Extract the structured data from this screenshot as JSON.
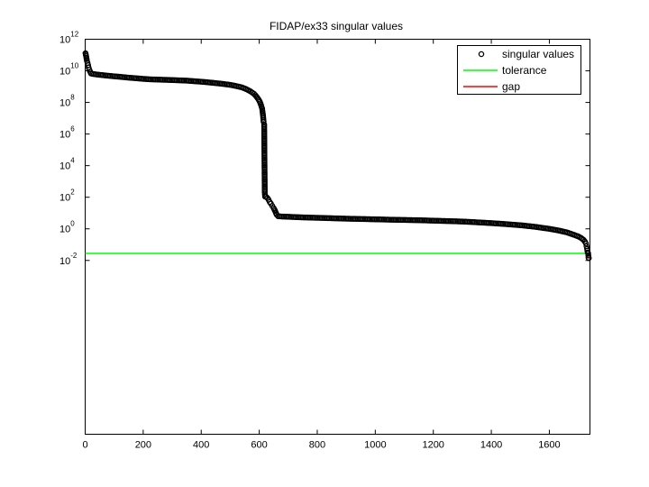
{
  "chart_data": {
    "type": "scatter",
    "title": "FIDAP/ex33 singular values",
    "xlabel": "",
    "ylabel": "",
    "yscale": "log",
    "xlim": [
      0,
      1740
    ],
    "ylim_exp": [
      -13,
      12
    ],
    "xticks": [
      "0",
      "200",
      "400",
      "600",
      "800",
      "1000",
      "1200",
      "1400",
      "1600"
    ],
    "yticks": [
      {
        "base": "10",
        "exp": "12"
      },
      {
        "base": "10",
        "exp": "10"
      },
      {
        "base": "10",
        "exp": "8"
      },
      {
        "base": "10",
        "exp": "6"
      },
      {
        "base": "10",
        "exp": "4"
      },
      {
        "base": "10",
        "exp": "2"
      },
      {
        "base": "10",
        "exp": "0"
      },
      {
        "base": "10",
        "exp": "-2"
      }
    ],
    "grid": false,
    "legend_position": "top-right",
    "legend": [
      {
        "label": "singular values",
        "marker": "circle",
        "color": "#000000"
      },
      {
        "label": "tolerance",
        "marker": "line",
        "color": "#00ff00"
      },
      {
        "label": "gap",
        "marker": "line",
        "color": "#ff0000"
      }
    ],
    "series": [
      {
        "name": "singular values",
        "color": "#000000",
        "points": [
          [
            1,
            130000000000.0
          ],
          [
            2,
            110000000000.0
          ],
          [
            3,
            90000000000.0
          ],
          [
            4,
            70000000000.0
          ],
          [
            5,
            55000000000.0
          ],
          [
            6,
            43000000000.0
          ],
          [
            8,
            32000000000.0
          ],
          [
            10,
            23000000000.0
          ],
          [
            12,
            16000000000.0
          ],
          [
            14,
            12000000000.0
          ],
          [
            17,
            9000000000.0
          ],
          [
            20,
            6800000000.0
          ],
          [
            30,
            6200000000.0
          ],
          [
            50,
            5600000000.0
          ],
          [
            75,
            5000000000.0
          ],
          [
            100,
            4500000000.0
          ],
          [
            125,
            4100000000.0
          ],
          [
            150,
            3700000000.0
          ],
          [
            175,
            3400000000.0
          ],
          [
            200,
            3100000000.0
          ],
          [
            225,
            2900000000.0
          ],
          [
            250,
            2800000000.0
          ],
          [
            275,
            2700000000.0
          ],
          [
            300,
            2600000000.0
          ],
          [
            325,
            2500000000.0
          ],
          [
            350,
            2400000000.0
          ],
          [
            375,
            2200000000.0
          ],
          [
            400,
            2050000000.0
          ],
          [
            420,
            1900000000.0
          ],
          [
            440,
            1750000000.0
          ],
          [
            460,
            1600000000.0
          ],
          [
            480,
            1450000000.0
          ],
          [
            500,
            1300000000.0
          ],
          [
            520,
            1100000000.0
          ],
          [
            540,
            900000000.0
          ],
          [
            555,
            700000000.0
          ],
          [
            570,
            500000000.0
          ],
          [
            582,
            350000000.0
          ],
          [
            590,
            240000000.0
          ],
          [
            597,
            160000000.0
          ],
          [
            602,
            110000000.0
          ],
          [
            606,
            70000000.0
          ],
          [
            610,
            40000000.0
          ],
          [
            613,
            15000000.0
          ],
          [
            615,
            6000000.0
          ],
          [
            617,
            4000000.0
          ],
          [
            619,
            200.0
          ],
          [
            620,
            110.0
          ],
          [
            624,
            105.0
          ],
          [
            628,
            90.0
          ],
          [
            632,
            70.0
          ],
          [
            636,
            50.0
          ],
          [
            640,
            40.0
          ],
          [
            645,
            28.0
          ],
          [
            650,
            20.0
          ],
          [
            655,
            13.0
          ],
          [
            660,
            8
          ],
          [
            665,
            6.3
          ],
          [
            680,
            6.0
          ],
          [
            700,
            5.8
          ],
          [
            750,
            5.3
          ],
          [
            800,
            5.0
          ],
          [
            850,
            4.7
          ],
          [
            900,
            4.4
          ],
          [
            950,
            4.2
          ],
          [
            1000,
            4.0
          ],
          [
            1050,
            3.8
          ],
          [
            1100,
            3.65
          ],
          [
            1150,
            3.5
          ],
          [
            1200,
            3.3
          ],
          [
            1250,
            3.1
          ],
          [
            1300,
            2.9
          ],
          [
            1350,
            2.6
          ],
          [
            1400,
            2.3
          ],
          [
            1450,
            2.0
          ],
          [
            1500,
            1.7
          ],
          [
            1550,
            1.35
          ],
          [
            1600,
            1.0
          ],
          [
            1630,
            0.8
          ],
          [
            1660,
            0.6
          ],
          [
            1680,
            0.45
          ],
          [
            1700,
            0.33
          ],
          [
            1710,
            0.26
          ],
          [
            1718,
            0.2
          ],
          [
            1722,
            0.16
          ],
          [
            1726,
            0.12
          ],
          [
            1728,
            0.08
          ],
          [
            1730,
            0.055
          ],
          [
            1732,
            0.032
          ],
          [
            1734,
            0.028
          ],
          [
            1735,
            0.015
          ],
          [
            1736,
            0.014
          ]
        ]
      },
      {
        "name": "tolerance",
        "color": "#00ff00",
        "line": [
          [
            0,
            0.028
          ],
          [
            1740,
            0.028
          ]
        ]
      },
      {
        "name": "gap",
        "color": "#ff0000",
        "line": [
          [
            1734,
            0.028
          ],
          [
            1735,
            0.015
          ]
        ]
      }
    ]
  }
}
